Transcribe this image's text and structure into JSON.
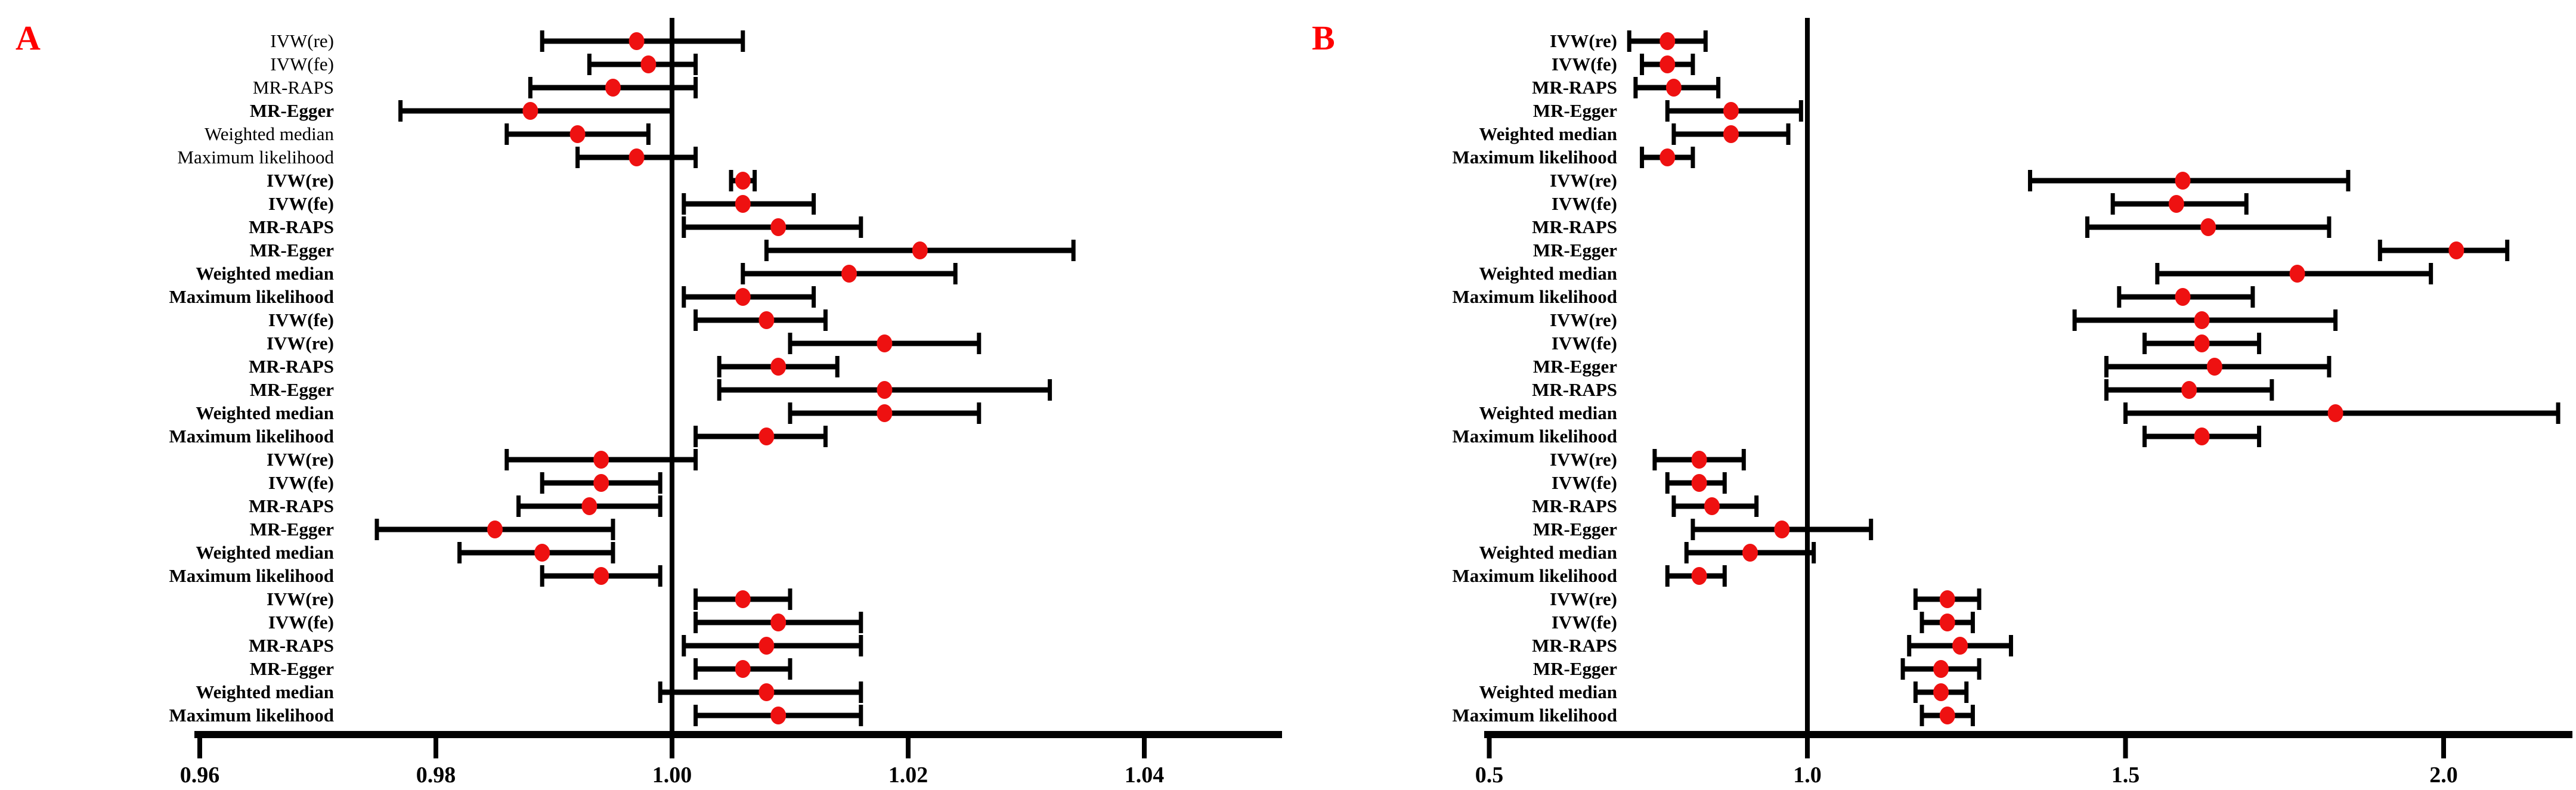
{
  "colors": {
    "marker": "#ee1111",
    "line": "#000000",
    "panel_letter": "#ff0000",
    "background": "#ffffff"
  },
  "chart_data": [
    {
      "type": "forest",
      "panel_label": "A",
      "xlabel": "",
      "ylabel": "",
      "xlim": [
        0.9585,
        1.0515
      ],
      "ref_line": 1.0,
      "grid": false,
      "legend": null,
      "x_ticks": [
        {
          "value": 0.96,
          "label": "0.96"
        },
        {
          "value": 0.98,
          "label": "0.98"
        },
        {
          "value": 1.0,
          "label": "1.00"
        },
        {
          "value": 1.02,
          "label": "1.02"
        },
        {
          "value": 1.04,
          "label": "1.04"
        }
      ],
      "rows": [
        {
          "method": "IVW(re)",
          "bold": false,
          "or": 0.997,
          "ci_low": 0.989,
          "ci_high": 1.006
        },
        {
          "method": "IVW(fe)",
          "bold": false,
          "or": 0.998,
          "ci_low": 0.993,
          "ci_high": 1.002
        },
        {
          "method": "MR-RAPS",
          "bold": false,
          "or": 0.995,
          "ci_low": 0.988,
          "ci_high": 1.002
        },
        {
          "method": "MR-Egger",
          "bold": true,
          "or": 0.988,
          "ci_low": 0.977,
          "ci_high": 1.0
        },
        {
          "method": "Weighted median",
          "bold": false,
          "or": 0.992,
          "ci_low": 0.986,
          "ci_high": 0.998
        },
        {
          "method": "Maximum likelihood",
          "bold": false,
          "or": 0.997,
          "ci_low": 0.992,
          "ci_high": 1.002
        },
        {
          "method": "IVW(re)",
          "bold": true,
          "or": 1.006,
          "ci_low": 1.005,
          "ci_high": 1.007
        },
        {
          "method": "IVW(fe)",
          "bold": true,
          "or": 1.006,
          "ci_low": 1.001,
          "ci_high": 1.012
        },
        {
          "method": "MR-RAPS",
          "bold": true,
          "or": 1.009,
          "ci_low": 1.001,
          "ci_high": 1.016
        },
        {
          "method": "MR-Egger",
          "bold": true,
          "or": 1.021,
          "ci_low": 1.008,
          "ci_high": 1.034
        },
        {
          "method": "Weighted median",
          "bold": true,
          "or": 1.015,
          "ci_low": 1.006,
          "ci_high": 1.024
        },
        {
          "method": "Maximum likelihood",
          "bold": true,
          "or": 1.006,
          "ci_low": 1.001,
          "ci_high": 1.012
        },
        {
          "method": "IVW(fe)",
          "bold": true,
          "or": 1.008,
          "ci_low": 1.002,
          "ci_high": 1.013
        },
        {
          "method": "IVW(re)",
          "bold": true,
          "or": 1.018,
          "ci_low": 1.01,
          "ci_high": 1.026
        },
        {
          "method": "MR-RAPS",
          "bold": true,
          "or": 1.009,
          "ci_low": 1.004,
          "ci_high": 1.014
        },
        {
          "method": "MR-Egger",
          "bold": true,
          "or": 1.018,
          "ci_low": 1.004,
          "ci_high": 1.032
        },
        {
          "method": "Weighted median",
          "bold": true,
          "or": 1.018,
          "ci_low": 1.01,
          "ci_high": 1.026
        },
        {
          "method": "Maximum likelihood",
          "bold": true,
          "or": 1.008,
          "ci_low": 1.002,
          "ci_high": 1.013
        },
        {
          "method": "IVW(re)",
          "bold": true,
          "or": 0.994,
          "ci_low": 0.986,
          "ci_high": 1.002
        },
        {
          "method": "IVW(fe)",
          "bold": true,
          "or": 0.994,
          "ci_low": 0.989,
          "ci_high": 0.999
        },
        {
          "method": "MR-RAPS",
          "bold": true,
          "or": 0.993,
          "ci_low": 0.987,
          "ci_high": 0.999
        },
        {
          "method": "MR-Egger",
          "bold": true,
          "or": 0.985,
          "ci_low": 0.975,
          "ci_high": 0.995
        },
        {
          "method": "Weighted median",
          "bold": true,
          "or": 0.989,
          "ci_low": 0.982,
          "ci_high": 0.995
        },
        {
          "method": "Maximum likelihood",
          "bold": true,
          "or": 0.994,
          "ci_low": 0.989,
          "ci_high": 0.999
        },
        {
          "method": "IVW(re)",
          "bold": true,
          "or": 1.006,
          "ci_low": 1.002,
          "ci_high": 1.01
        },
        {
          "method": "IVW(fe)",
          "bold": true,
          "or": 1.009,
          "ci_low": 1.002,
          "ci_high": 1.016
        },
        {
          "method": "MR-RAPS",
          "bold": true,
          "or": 1.008,
          "ci_low": 1.001,
          "ci_high": 1.016
        },
        {
          "method": "MR-Egger",
          "bold": true,
          "or": 1.006,
          "ci_low": 1.002,
          "ci_high": 1.01
        },
        {
          "method": "Weighted median",
          "bold": true,
          "or": 1.008,
          "ci_low": 0.999,
          "ci_high": 1.016
        },
        {
          "method": "Maximum likelihood",
          "bold": true,
          "or": 1.009,
          "ci_low": 1.002,
          "ci_high": 1.016
        }
      ]
    },
    {
      "type": "forest",
      "panel_label": "B",
      "xlabel": "",
      "ylabel": "",
      "xlim": [
        0.49,
        2.21
      ],
      "ref_line": 1.0,
      "grid": false,
      "legend": null,
      "x_ticks": [
        {
          "value": 0.5,
          "label": "0.5"
        },
        {
          "value": 1.0,
          "label": "1.0"
        },
        {
          "value": 1.5,
          "label": "1.5"
        },
        {
          "value": 2.0,
          "label": "2.0"
        }
      ],
      "rows": [
        {
          "method": "IVW(re)",
          "bold": true,
          "or": 0.78,
          "ci_low": 0.72,
          "ci_high": 0.84
        },
        {
          "method": "IVW(fe)",
          "bold": true,
          "or": 0.78,
          "ci_low": 0.74,
          "ci_high": 0.82
        },
        {
          "method": "MR-RAPS",
          "bold": true,
          "or": 0.79,
          "ci_low": 0.73,
          "ci_high": 0.86
        },
        {
          "method": "MR-Egger",
          "bold": true,
          "or": 0.88,
          "ci_low": 0.78,
          "ci_high": 0.99
        },
        {
          "method": "Weighted median",
          "bold": true,
          "or": 0.88,
          "ci_low": 0.79,
          "ci_high": 0.97
        },
        {
          "method": "Maximum likelihood",
          "bold": true,
          "or": 0.78,
          "ci_low": 0.74,
          "ci_high": 0.82
        },
        {
          "method": "IVW(re)",
          "bold": true,
          "or": 1.59,
          "ci_low": 1.35,
          "ci_high": 1.85
        },
        {
          "method": "IVW(fe)",
          "bold": true,
          "or": 1.58,
          "ci_low": 1.48,
          "ci_high": 1.69
        },
        {
          "method": "MR-RAPS",
          "bold": true,
          "or": 1.63,
          "ci_low": 1.44,
          "ci_high": 1.82
        },
        {
          "method": "MR-Egger",
          "bold": true,
          "or": 2.02,
          "ci_low": 1.9,
          "ci_high": 2.1
        },
        {
          "method": "Weighted median",
          "bold": true,
          "or": 1.77,
          "ci_low": 1.55,
          "ci_high": 1.98
        },
        {
          "method": "Maximum likelihood",
          "bold": true,
          "or": 1.59,
          "ci_low": 1.49,
          "ci_high": 1.7
        },
        {
          "method": "IVW(re)",
          "bold": true,
          "or": 1.62,
          "ci_low": 1.42,
          "ci_high": 1.83
        },
        {
          "method": "IVW(fe)",
          "bold": true,
          "or": 1.62,
          "ci_low": 1.53,
          "ci_high": 1.71
        },
        {
          "method": "MR-Egger",
          "bold": true,
          "or": 1.64,
          "ci_low": 1.47,
          "ci_high": 1.82
        },
        {
          "method": "MR-RAPS",
          "bold": true,
          "or": 1.6,
          "ci_low": 1.47,
          "ci_high": 1.73
        },
        {
          "method": "Weighted median",
          "bold": true,
          "or": 1.83,
          "ci_low": 1.5,
          "ci_high": 2.18
        },
        {
          "method": "Maximum likelihood",
          "bold": true,
          "or": 1.62,
          "ci_low": 1.53,
          "ci_high": 1.71
        },
        {
          "method": "IVW(re)",
          "bold": true,
          "or": 0.83,
          "ci_low": 0.76,
          "ci_high": 0.9
        },
        {
          "method": "IVW(fe)",
          "bold": true,
          "or": 0.83,
          "ci_low": 0.78,
          "ci_high": 0.87
        },
        {
          "method": "MR-RAPS",
          "bold": true,
          "or": 0.85,
          "ci_low": 0.79,
          "ci_high": 0.92
        },
        {
          "method": "MR-Egger",
          "bold": true,
          "or": 0.96,
          "ci_low": 0.82,
          "ci_high": 1.1
        },
        {
          "method": "Weighted median",
          "bold": true,
          "or": 0.91,
          "ci_low": 0.81,
          "ci_high": 1.01
        },
        {
          "method": "Maximum likelihood",
          "bold": true,
          "or": 0.83,
          "ci_low": 0.78,
          "ci_high": 0.87
        },
        {
          "method": "IVW(re)",
          "bold": true,
          "or": 1.22,
          "ci_low": 1.17,
          "ci_high": 1.27
        },
        {
          "method": "IVW(fe)",
          "bold": true,
          "or": 1.22,
          "ci_low": 1.18,
          "ci_high": 1.26
        },
        {
          "method": "MR-RAPS",
          "bold": true,
          "or": 1.24,
          "ci_low": 1.16,
          "ci_high": 1.32
        },
        {
          "method": "MR-Egger",
          "bold": true,
          "or": 1.21,
          "ci_low": 1.15,
          "ci_high": 1.27
        },
        {
          "method": "Weighted median",
          "bold": true,
          "or": 1.21,
          "ci_low": 1.17,
          "ci_high": 1.25
        },
        {
          "method": "Maximum likelihood",
          "bold": true,
          "or": 1.22,
          "ci_low": 1.18,
          "ci_high": 1.26
        }
      ]
    }
  ]
}
